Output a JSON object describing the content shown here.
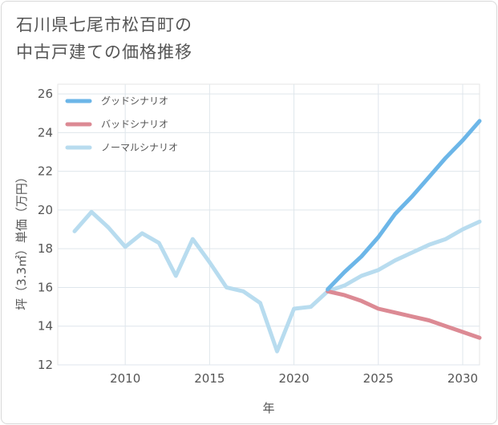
{
  "chart_data": {
    "type": "line",
    "title": "石川県七尾市松百町の中古戸建ての価格推移",
    "title_lines": [
      "石川県七尾市松百町の",
      "中古戸建ての価格推移"
    ],
    "xlabel": "年",
    "ylabel": "坪（3.3㎡）単価（万円）",
    "xlim": [
      2006,
      2031
    ],
    "ylim": [
      12,
      26.5
    ],
    "xticks": [
      2010,
      2015,
      2020,
      2025,
      2030
    ],
    "yticks": [
      12,
      14,
      16,
      18,
      20,
      22,
      24,
      26
    ],
    "grid": true,
    "legend_position": "top-left",
    "series": [
      {
        "name": "グッドシナリオ",
        "color": "#6cb6e8",
        "x": [
          2022,
          2023,
          2024,
          2025,
          2026,
          2027,
          2028,
          2029,
          2030,
          2031
        ],
        "values": [
          15.9,
          16.8,
          17.6,
          18.6,
          19.8,
          20.7,
          21.7,
          22.7,
          23.6,
          24.6
        ]
      },
      {
        "name": "バッドシナリオ",
        "color": "#dc8a94",
        "x": [
          2022,
          2023,
          2024,
          2025,
          2026,
          2027,
          2028,
          2029,
          2030,
          2031
        ],
        "values": [
          15.8,
          15.6,
          15.3,
          14.9,
          14.7,
          14.5,
          14.3,
          14.0,
          13.7,
          13.4
        ]
      },
      {
        "name": "ノーマルシナリオ",
        "color": "#b8dcef",
        "x": [
          2007,
          2008,
          2009,
          2010,
          2011,
          2012,
          2013,
          2014,
          2015,
          2016,
          2017,
          2018,
          2019,
          2020,
          2021,
          2022,
          2023,
          2024,
          2025,
          2026,
          2027,
          2028,
          2029,
          2030,
          2031
        ],
        "values": [
          18.9,
          19.9,
          19.1,
          18.1,
          18.8,
          18.3,
          16.6,
          18.5,
          17.3,
          16.0,
          15.8,
          15.2,
          12.7,
          14.9,
          15.0,
          15.8,
          16.1,
          16.6,
          16.9,
          17.4,
          17.8,
          18.2,
          18.5,
          19.0,
          19.4
        ]
      }
    ]
  }
}
